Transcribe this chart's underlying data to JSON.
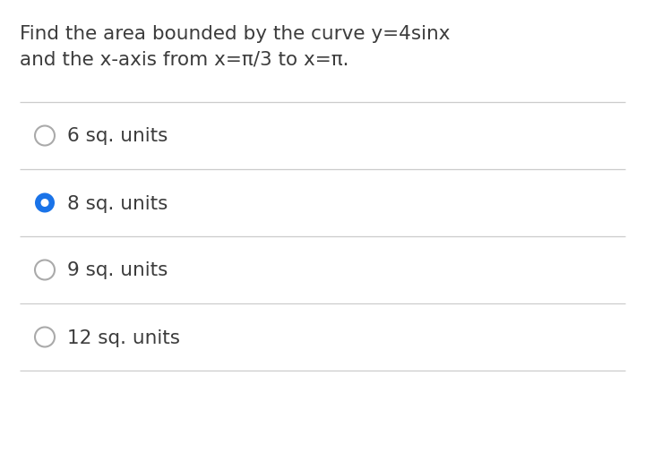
{
  "question_line1": "Find the area bounded by the curve y=4sinx",
  "question_line2": "and the x-axis from x=π/3 to x=π.",
  "options": [
    {
      "text": "6 sq. units",
      "selected": false
    },
    {
      "text": "8 sq. units",
      "selected": true
    },
    {
      "text": "9 sq. units",
      "selected": false
    },
    {
      "text": "12 sq. units",
      "selected": false
    }
  ],
  "background_color": "#ffffff",
  "text_color": "#3c3c3c",
  "option_text_color": "#3c3c3c",
  "divider_color": "#cccccc",
  "circle_unselected_edge": "#aaaaaa",
  "circle_selected_fill": "#1a73e8",
  "circle_selected_edge": "#1a73e8",
  "question_fontsize": 15.5,
  "option_fontsize": 15.5,
  "fig_width": 7.2,
  "fig_height": 5.06,
  "dpi": 100
}
